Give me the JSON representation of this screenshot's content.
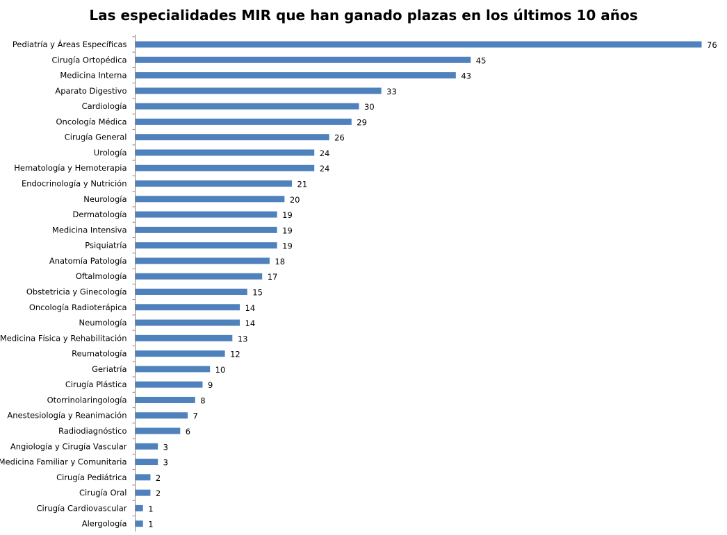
{
  "chart_data": {
    "type": "bar",
    "orientation": "horizontal",
    "title": "Las especialidades MIR que han ganado plazas en los últimos 10 años",
    "xlabel": "",
    "ylabel": "",
    "xlim": [
      0,
      76
    ],
    "grid": false,
    "legend": "none",
    "bar_color": "#4f81bd",
    "categories": [
      "Pediatría y Áreas Específicas",
      "Cirugía Ortopédica",
      "Medicina Interna",
      "Aparato Digestivo",
      "Cardiología",
      "Oncología Médica",
      "Cirugía General",
      "Urología",
      "Hematología y Hemoterapia",
      "Endocrinología y Nutrición",
      "Neurología",
      "Dermatología",
      "Medicina Intensiva",
      "Psiquiatría",
      "Anatomía Patología",
      "Oftalmología",
      "Obstetricia y Ginecología",
      "Oncología Radioterápica",
      "Neumología",
      "Medicina Física y Rehabilitación",
      "Reumatología",
      "Geriatría",
      "Cirugía Plástica",
      "Otorrinolaringología",
      "Anestesiología y Reanimación",
      "Radiodiagnóstico",
      "Angiología y Cirugía Vascular",
      "Medicina Familiar y Comunitaria",
      "Cirugía Pediátrica",
      "Cirugía Oral",
      "Cirugía Cardiovascular",
      "Alergología"
    ],
    "values": [
      76,
      45,
      43,
      33,
      30,
      29,
      26,
      24,
      24,
      21,
      20,
      19,
      19,
      19,
      18,
      17,
      15,
      14,
      14,
      13,
      12,
      10,
      9,
      8,
      7,
      6,
      3,
      3,
      2,
      2,
      1,
      1
    ]
  }
}
